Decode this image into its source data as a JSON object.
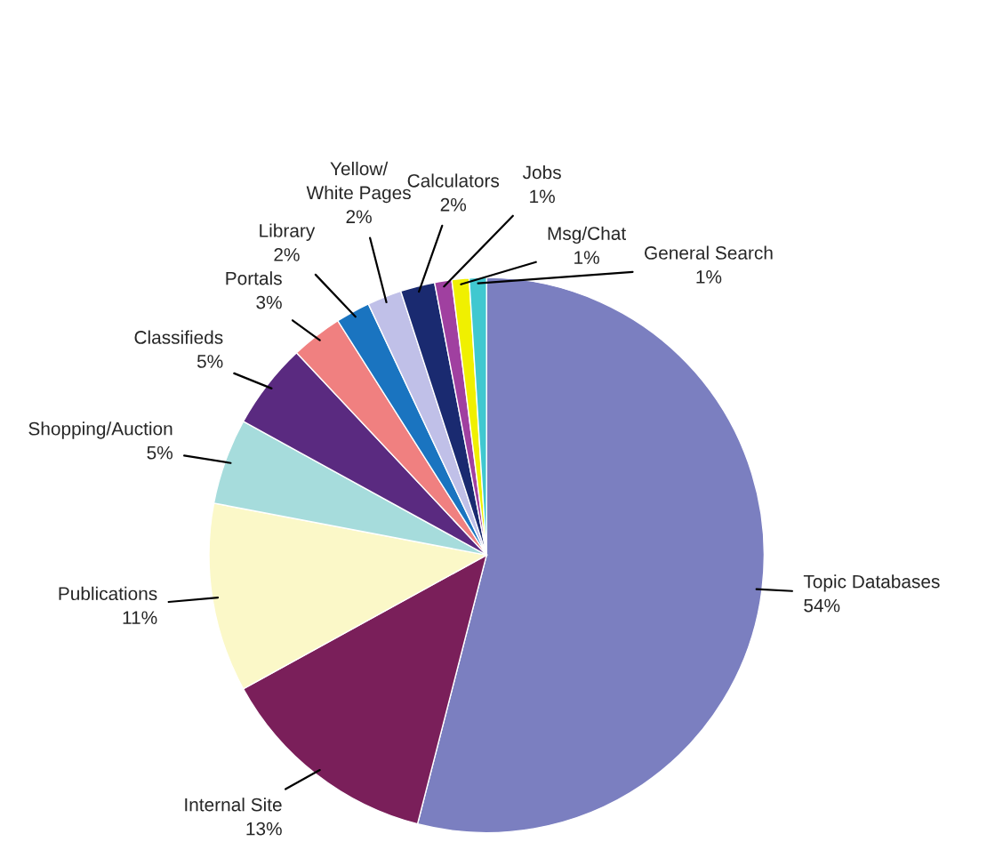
{
  "chart_data": {
    "type": "pie",
    "categories": [
      "Topic Databases",
      "Internal Site",
      "Publications",
      "Shopping/Auction",
      "Classifieds",
      "Portals",
      "Library",
      "Yellow/\nWhite Pages",
      "Calculators",
      "Jobs",
      "Msg/Chat",
      "General Search"
    ],
    "values": [
      54,
      13,
      11,
      5,
      5,
      3,
      2,
      2,
      2,
      1,
      1,
      1
    ],
    "value_labels": [
      "54%",
      "13%",
      "11%",
      "5%",
      "5%",
      "3%",
      "2%",
      "2%",
      "2%",
      "1%",
      "1%",
      "1%"
    ],
    "colors": [
      "#7b7fc0",
      "#7a1f5a",
      "#fbf8c8",
      "#a6dcdc",
      "#5a2a80",
      "#f08080",
      "#1a74c0",
      "#c0c0e8",
      "#1a2a70",
      "#a040a0",
      "#f0f000",
      "#40c8d0"
    ]
  }
}
